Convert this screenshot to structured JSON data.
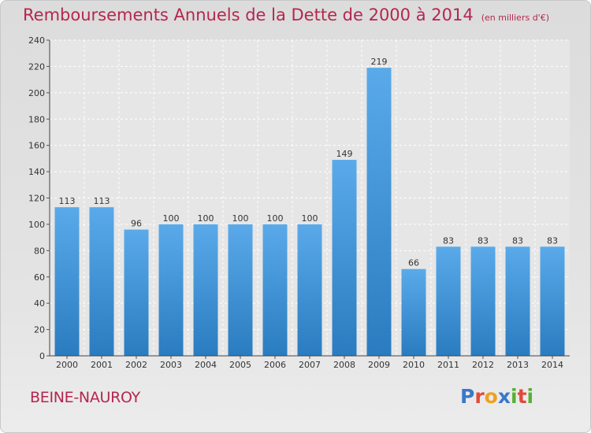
{
  "header": {
    "title": "Remboursements Annuels de la Dette de 2000 à 2014",
    "unit": "(en milliers d'€)"
  },
  "footer": {
    "town": "BEINE-NAUROY",
    "brand": "Proxiti"
  },
  "colors": {
    "title": "#b5264f",
    "bar_light": "#5aaaea",
    "bar_dark": "#2a7cc0",
    "brand_letters": [
      "#3a78c8",
      "#e04a3a",
      "#f0a020",
      "#3a78c8",
      "#58b030",
      "#e04a3a",
      "#58b030"
    ]
  },
  "chart_data": {
    "type": "bar",
    "categories": [
      "2000",
      "2001",
      "2002",
      "2003",
      "2004",
      "2005",
      "2006",
      "2007",
      "2008",
      "2009",
      "2010",
      "2011",
      "2012",
      "2013",
      "2014"
    ],
    "values": [
      113,
      113,
      96,
      100,
      100,
      100,
      100,
      100,
      149,
      219,
      66,
      83,
      83,
      83,
      83
    ],
    "ylim": [
      0,
      240
    ],
    "yticks": [
      0,
      20,
      40,
      60,
      80,
      100,
      120,
      140,
      160,
      180,
      200,
      220,
      240
    ],
    "grid": true
  }
}
